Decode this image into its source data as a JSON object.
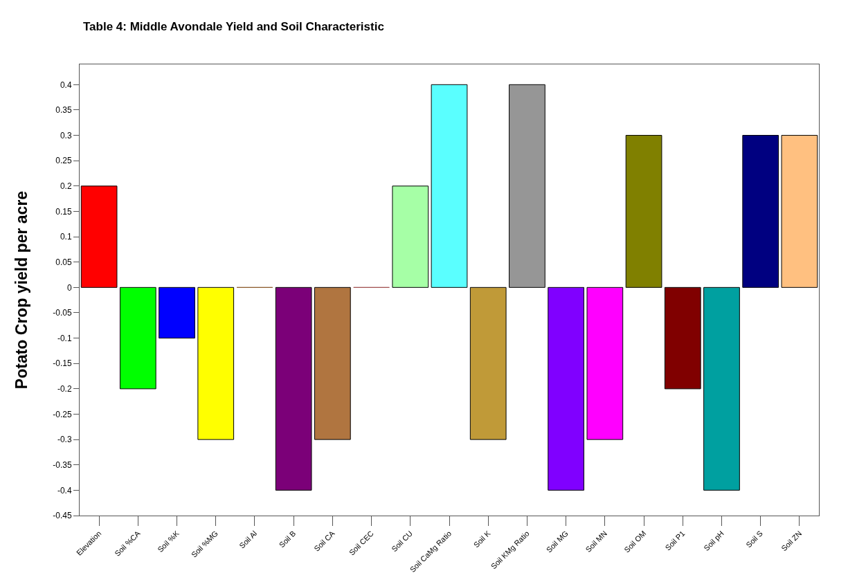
{
  "chart_data": {
    "type": "bar",
    "title": "Table 4: Middle Avondale Yield and Soil Characteristic",
    "ylabel": "Potato Crop yield per acre",
    "categories": [
      "Elevation",
      "Soil %CA",
      "Soil %K",
      "Soil %MG",
      "Soil Al",
      "Soil B",
      "Soil CA",
      "Soil CEC",
      "Soil CU",
      "Soil CaMg Ratio",
      "Soil K",
      "Soil KMg Ratio",
      "Soil MG",
      "Soil MN",
      "Soil OM",
      "Soil P1",
      "Soil pH",
      "Soil S",
      "Soil ZN"
    ],
    "values": [
      0.2,
      -0.2,
      -0.1,
      -0.3,
      0,
      -0.4,
      -0.3,
      0,
      0.2,
      0.4,
      -0.3,
      0.4,
      -0.4,
      -0.3,
      0.3,
      -0.2,
      -0.4,
      0.3,
      0.3
    ],
    "colors": [
      "#ff0000",
      "#00ff00",
      "#0000ff",
      "#ffff00",
      "#8b5a2b",
      "#7b0078",
      "#b07540",
      "#a05050",
      "#a6ffa6",
      "#5affff",
      "#c09a38",
      "#969696",
      "#8000ff",
      "#ff00ff",
      "#808000",
      "#800000",
      "#00a0a0",
      "#000080",
      "#ffc080"
    ],
    "ylim": [
      -0.45,
      0.44
    ],
    "yticks": [
      -0.45,
      -0.4,
      -0.35,
      -0.3,
      -0.25,
      -0.2,
      -0.15,
      -0.1,
      -0.05,
      0,
      0.05,
      0.1,
      0.15,
      0.2,
      0.25,
      0.3,
      0.35,
      0.4
    ],
    "relative": false
  }
}
